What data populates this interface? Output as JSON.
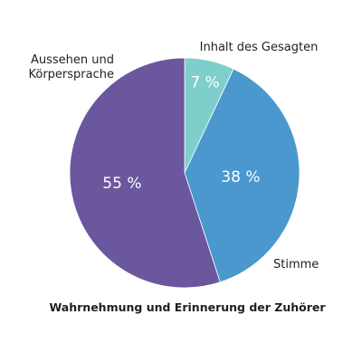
{
  "chart_data": {
    "type": "pie",
    "title": "Wahrnehmung und Erinnerung der Zuhörer",
    "slices": [
      {
        "label": "Inhalt des Gesagten",
        "value": 7,
        "display": "7 %",
        "color": "#7ecfcb"
      },
      {
        "label": "Stimme",
        "value": 38,
        "display": "38 %",
        "color": "#4a98ce"
      },
      {
        "label": "Aussehen und Körpersprache",
        "label_lines": [
          "Aussehen und",
          "Körpersprache"
        ],
        "value": 55,
        "display": "55 %",
        "color": "#6a579d"
      }
    ]
  }
}
